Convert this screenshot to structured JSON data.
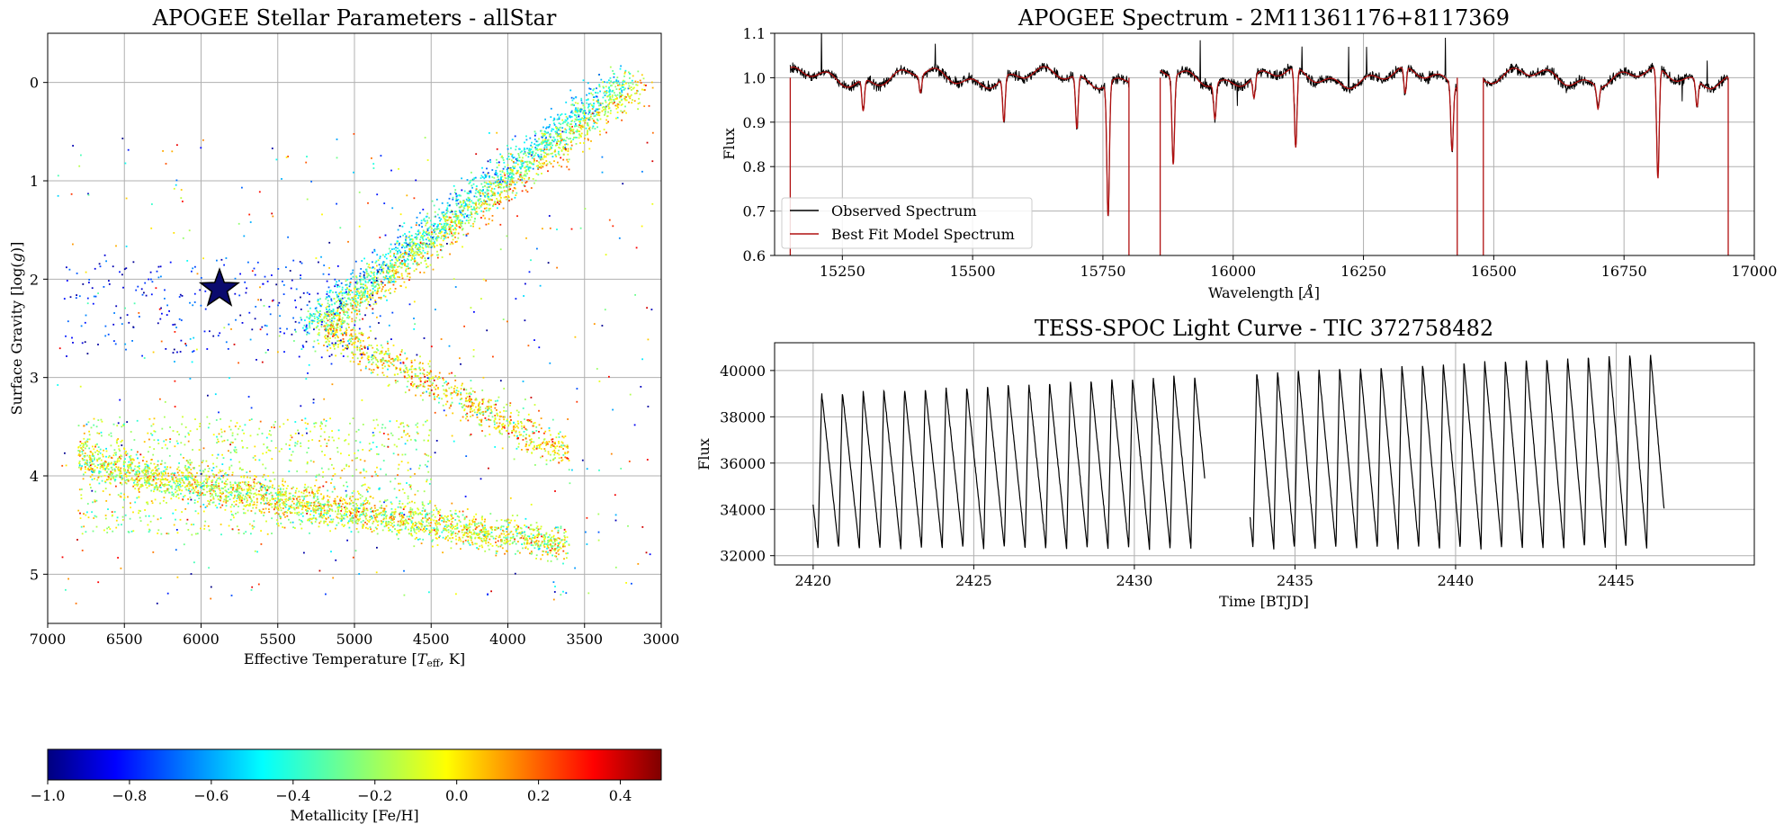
{
  "chart_data": [
    {
      "type": "scatter",
      "title": "APOGEE Stellar Parameters - allStar",
      "xlabel": "Effective Temperature [T_eff, K]",
      "ylabel": "Surface Gravity [log(g)]",
      "xlim": [
        7000,
        3000
      ],
      "ylim": [
        5.5,
        -0.5
      ],
      "x_ticks": [
        "7000",
        "6500",
        "6000",
        "5500",
        "5000",
        "4500",
        "4000",
        "3500",
        "3000"
      ],
      "y_ticks": [
        "0",
        "1",
        "2",
        "3",
        "4",
        "5"
      ],
      "grid": true,
      "color_by": "Metallicity [Fe/H]",
      "highlight_star": {
        "teff": 5880,
        "logg": 2.1
      },
      "populations": [
        {
          "name": "giant-branch",
          "teff_range": [
            5200,
            3150
          ],
          "logg_range": [
            2.5,
            0.0
          ]
        },
        {
          "name": "main-sequence",
          "teff_range": [
            6800,
            3600
          ],
          "logg_range": [
            3.8,
            4.7
          ]
        },
        {
          "name": "horizontal-branch",
          "teff_range": [
            6900,
            4800
          ],
          "logg_range": [
            1.8,
            2.8
          ]
        }
      ],
      "colorbar": {
        "label": "Metallicity [Fe/H]",
        "range": [
          -1.0,
          0.5
        ],
        "ticks": [
          "−1.0",
          "−0.8",
          "−0.6",
          "−0.4",
          "−0.2",
          "0.0",
          "0.2",
          "0.4"
        ],
        "tick_values": [
          -1.0,
          -0.8,
          -0.6,
          -0.4,
          -0.2,
          0.0,
          0.2,
          0.4
        ]
      }
    },
    {
      "type": "line",
      "title": "APOGEE Spectrum - 2M11361176+8117369",
      "xlabel": "Wavelength [Å]",
      "ylabel": "Flux",
      "xlim": [
        15120,
        17000
      ],
      "ylim": [
        0.6,
        1.1
      ],
      "x_ticks": [
        "15250",
        "15500",
        "15750",
        "16000",
        "16250",
        "16500",
        "16750",
        "17000"
      ],
      "y_ticks": [
        "0.6",
        "0.7",
        "0.8",
        "0.9",
        "1.0",
        "1.1"
      ],
      "grid": true,
      "segments": [
        [
          15150,
          15800
        ],
        [
          15860,
          16430
        ],
        [
          16480,
          16950
        ]
      ],
      "absorption_lines": [
        {
          "w": 15290,
          "depth": 0.07
        },
        {
          "w": 15400,
          "depth": 0.04
        },
        {
          "w": 15560,
          "depth": 0.1
        },
        {
          "w": 15700,
          "depth": 0.12
        },
        {
          "w": 15760,
          "depth": 0.3
        },
        {
          "w": 15885,
          "depth": 0.2
        },
        {
          "w": 15965,
          "depth": 0.08
        },
        {
          "w": 16040,
          "depth": 0.05
        },
        {
          "w": 16120,
          "depth": 0.18
        },
        {
          "w": 16330,
          "depth": 0.06
        },
        {
          "w": 16420,
          "depth": 0.15
        },
        {
          "w": 16700,
          "depth": 0.05
        },
        {
          "w": 16815,
          "depth": 0.25
        },
        {
          "w": 16890,
          "depth": 0.06
        }
      ],
      "legend": {
        "position": "lower-left"
      },
      "series": [
        {
          "name": "Observed Spectrum",
          "color": "#000000"
        },
        {
          "name": "Best Fit Model Spectrum",
          "color": "#b01010"
        }
      ]
    },
    {
      "type": "line",
      "title": "TESS-SPOC Light Curve - TIC 372758482",
      "xlabel": "Time [BTJD]",
      "ylabel": "Flux",
      "xlim": [
        2418.8,
        2449.3
      ],
      "ylim": [
        31600,
        41200
      ],
      "x_ticks": [
        "2420",
        "2425",
        "2430",
        "2435",
        "2440",
        "2445"
      ],
      "y_ticks": [
        "32000",
        "34000",
        "36000",
        "38000",
        "40000"
      ],
      "grid": true,
      "series": [
        {
          "name": "",
          "color": "#000000"
        }
      ],
      "segments": [
        [
          2420.0,
          2432.2
        ],
        [
          2433.6,
          2446.5
        ]
      ],
      "period_days": 0.645,
      "flux_min": 32300,
      "flux_max_start": 39000,
      "flux_max_end": 40800
    }
  ]
}
